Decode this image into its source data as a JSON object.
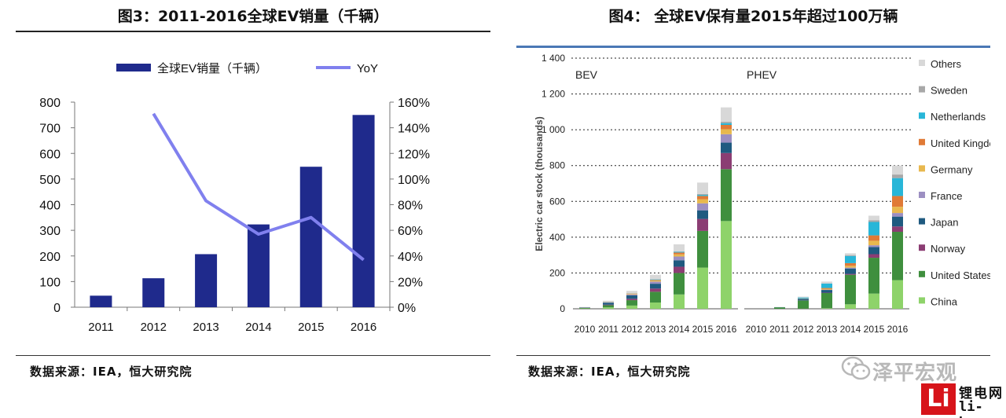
{
  "left": {
    "title": "图3：2011-2016全球EV销量（千辆）",
    "source": "数据来源：IEA，恒大研究院"
  },
  "right": {
    "title": "图4：  全球EV保有量2015年超过100万辆",
    "source": "数据来源：IEA，恒大研究院"
  },
  "watermark": {
    "text": "泽平宏观",
    "icon": "wechat-icon"
  },
  "logo": {
    "mark": "Li",
    "name": "锂电网",
    "url": "li-b.cn"
  },
  "colors": {
    "bar": "#1f2a8c",
    "yoy": "#8080ee",
    "China": "#8ed36a",
    "United States": "#3f8f3e",
    "Norway": "#8b3d73",
    "Japan": "#1f5a80",
    "France": "#9c8fc2",
    "Germany": "#e8b84e",
    "United Kingdom": "#e07a36",
    "Netherlands": "#28b6d8",
    "Sweden": "#a8a8a8",
    "Others": "#d8d8d8"
  },
  "chart_data": [
    {
      "type": "bar",
      "title": "图3：2011-2016全球EV销量（千辆）",
      "categories": [
        "2011",
        "2012",
        "2013",
        "2014",
        "2015",
        "2016"
      ],
      "series": [
        {
          "name": "全球EV销量（千辆）",
          "type": "bar",
          "axis": "left",
          "values": [
            45,
            113,
            207,
            323,
            548,
            750
          ]
        },
        {
          "name": "YoY",
          "type": "line",
          "axis": "right",
          "values": [
            null,
            151,
            83,
            57,
            70,
            37
          ]
        }
      ],
      "ylim": [
        0,
        800
      ],
      "yticks": [
        "0",
        "100",
        "200",
        "300",
        "400",
        "500",
        "600",
        "700",
        "800"
      ],
      "y2lim": [
        0,
        160
      ],
      "y2ticks": [
        "0%",
        "20%",
        "40%",
        "60%",
        "80%",
        "100%",
        "120%",
        "140%",
        "160%"
      ],
      "legend": "top"
    },
    {
      "type": "bar",
      "stacked": true,
      "title": "全球EV保有量2015年超过100万辆",
      "ylabel": "Electric car stock (thousands)",
      "ylim": [
        0,
        1400
      ],
      "yticks": [
        "0",
        "200",
        "400",
        "600",
        "800",
        "1 000",
        "1 200",
        "1 400"
      ],
      "panels": [
        {
          "label": "BEV",
          "categories": [
            "2010",
            "2011",
            "2012",
            "2013",
            "2014",
            "2015",
            "2016"
          ],
          "stacks": [
            {
              "name": "China",
              "values": [
                2,
                8,
                18,
                35,
                80,
                230,
                490
              ]
            },
            {
              "name": "United States",
              "values": [
                3,
                12,
                30,
                60,
                120,
                205,
                290
              ]
            },
            {
              "name": "Norway",
              "values": [
                1,
                3,
                8,
                18,
                35,
                67,
                90
              ]
            },
            {
              "name": "Japan",
              "values": [
                2,
                11,
                19,
                27,
                36,
                48,
                58
              ]
            },
            {
              "name": "France",
              "values": [
                0,
                2,
                5,
                12,
                21,
                39,
                47
              ]
            },
            {
              "name": "Germany",
              "values": [
                0,
                1,
                3,
                6,
                12,
                23,
                28
              ]
            },
            {
              "name": "United Kingdom",
              "values": [
                0,
                1,
                2,
                3,
                10,
                18,
                24
              ]
            },
            {
              "name": "Netherlands",
              "values": [
                0,
                1,
                1,
                3,
                4,
                6,
                10
              ]
            },
            {
              "name": "Sweden",
              "values": [
                0,
                0,
                0,
                1,
                2,
                5,
                8
              ]
            },
            {
              "name": "Others",
              "values": [
                2,
                6,
                14,
                25,
                40,
                64,
                80
              ]
            }
          ]
        },
        {
          "label": "PHEV",
          "categories": [
            "2010",
            "2011",
            "2012",
            "2013",
            "2014",
            "2015",
            "2016"
          ],
          "stacks": [
            {
              "name": "China",
              "values": [
                0,
                0,
                1,
                3,
                25,
                85,
                160
              ]
            },
            {
              "name": "United States",
              "values": [
                0,
                8,
                45,
                85,
                165,
                200,
                270
              ]
            },
            {
              "name": "Norway",
              "values": [
                0,
                0,
                1,
                2,
                5,
                20,
                30
              ]
            },
            {
              "name": "Japan",
              "values": [
                0,
                1,
                8,
                15,
                30,
                40,
                55
              ]
            },
            {
              "name": "France",
              "values": [
                0,
                0,
                1,
                2,
                5,
                10,
                20
              ]
            },
            {
              "name": "Germany",
              "values": [
                0,
                0,
                1,
                5,
                10,
                25,
                35
              ]
            },
            {
              "name": "United Kingdom",
              "values": [
                0,
                0,
                1,
                4,
                15,
                30,
                60
              ]
            },
            {
              "name": "Netherlands",
              "values": [
                0,
                0,
                5,
                25,
                40,
                75,
                100
              ]
            },
            {
              "name": "Sweden",
              "values": [
                0,
                0,
                0,
                1,
                5,
                10,
                20
              ]
            },
            {
              "name": "Others",
              "values": [
                0,
                1,
                5,
                10,
                10,
                25,
                50
              ]
            }
          ]
        }
      ],
      "legend": "right",
      "legend_order": [
        "Others",
        "Sweden",
        "Netherlands",
        "United Kingdom",
        "Germany",
        "France",
        "Japan",
        "Norway",
        "United States",
        "China"
      ]
    }
  ]
}
